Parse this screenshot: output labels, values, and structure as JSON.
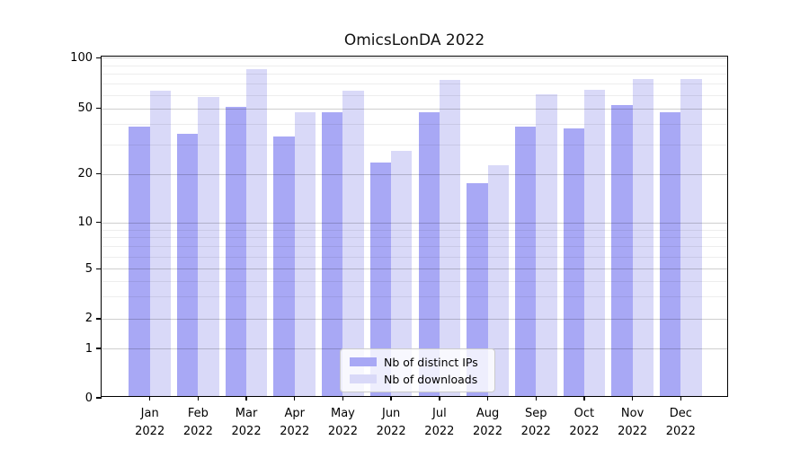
{
  "chart_data": {
    "type": "bar",
    "title": "OmicsLonDA 2022",
    "x_months": [
      "Jan",
      "Feb",
      "Mar",
      "Apr",
      "May",
      "Jun",
      "Jul",
      "Aug",
      "Sep",
      "Oct",
      "Nov",
      "Dec"
    ],
    "x_year_label": "2022",
    "series": [
      {
        "name": "Nb of distinct IPs",
        "color": "#a8a8f5",
        "values": [
          38,
          34,
          50,
          33,
          46,
          23,
          46,
          17,
          38,
          37,
          51,
          46
        ]
      },
      {
        "name": "Nb of downloads",
        "color": "#d9d9f8",
        "values": [
          62,
          57,
          83,
          46,
          62,
          27,
          72,
          22,
          59,
          63,
          73,
          73
        ]
      }
    ],
    "y_ticks": [
      0,
      1,
      2,
      5,
      10,
      20,
      50,
      100
    ],
    "y_minor_gridlines": [
      3,
      4,
      6,
      7,
      8,
      9,
      30,
      40,
      60,
      70,
      80,
      90
    ],
    "y_tick_anchors": [
      [
        0,
        0.0
      ],
      [
        1,
        0.1447
      ],
      [
        2,
        0.2316
      ],
      [
        5,
        0.3782
      ],
      [
        10,
        0.5139
      ],
      [
        20,
        0.6561
      ],
      [
        50,
        0.8482
      ],
      [
        100,
        0.9966
      ]
    ],
    "y_scale": "symlog",
    "ylim": [
      0,
      103
    ],
    "grid": true,
    "legend_position": "lower center"
  }
}
